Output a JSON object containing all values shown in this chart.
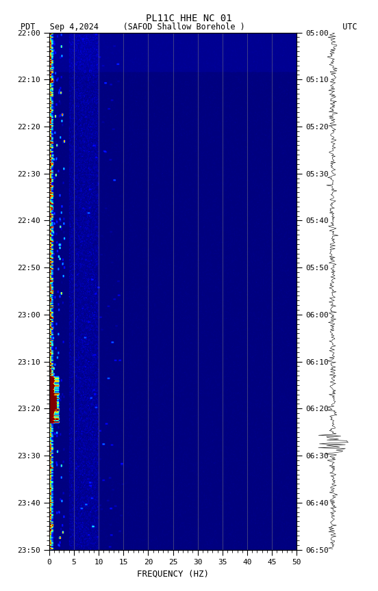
{
  "title_line1": "PL11C HHE NC 01",
  "title_line2": "PDT   Sep 4,2024     (SAFOD Shallow Borehole )                    UTC",
  "xlabel": "FREQUENCY (HZ)",
  "freq_min": 0,
  "freq_max": 50,
  "left_ticks": [
    "22:00",
    "22:10",
    "22:20",
    "22:30",
    "22:40",
    "22:50",
    "23:00",
    "23:10",
    "23:20",
    "23:30",
    "23:40",
    "23:50"
  ],
  "right_ticks": [
    "05:00",
    "05:10",
    "05:20",
    "05:30",
    "05:40",
    "05:50",
    "06:00",
    "06:10",
    "06:20",
    "06:30",
    "06:40",
    "06:50"
  ],
  "vertical_grid_lines": [
    5,
    10,
    15,
    20,
    25,
    30,
    35,
    40,
    45
  ],
  "fig_bg": "#ffffff",
  "colormap": "jet",
  "noise_seed": 42,
  "n_time": 660,
  "n_freq": 500
}
